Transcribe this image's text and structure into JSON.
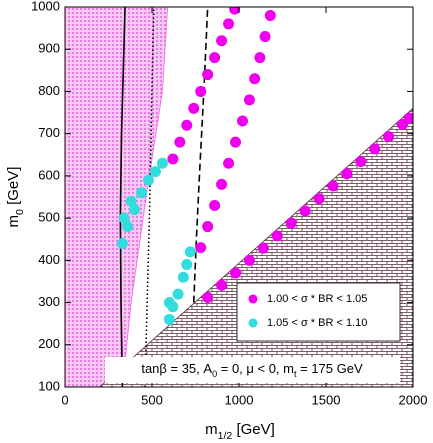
{
  "chart_data": {
    "type": "scatter",
    "xlabel": [
      "m",
      "1/2",
      " [GeV]"
    ],
    "ylabel": [
      "m",
      "0",
      " [GeV]"
    ],
    "annotation": [
      "tanβ = 35, A",
      "0",
      " = 0, μ < 0, m",
      "t",
      " = 175 GeV"
    ],
    "xlim": [
      0,
      2000
    ],
    "ylim": [
      100,
      1000
    ],
    "xticks": [
      0,
      500,
      1000,
      1500,
      2000
    ],
    "yticks": [
      100,
      200,
      300,
      400,
      500,
      600,
      700,
      800,
      900,
      1000
    ],
    "legend": "lower right",
    "regions": [
      {
        "pattern": "dots",
        "color": "#ee66ee",
        "x": [
          0,
          0,
          590,
          560,
          470,
          380,
          330
        ],
        "y": [
          100,
          1000,
          1000,
          800,
          560,
          300,
          100
        ]
      },
      {
        "pattern": "brick",
        "color": "#5a2a3a",
        "x": [
          200,
          2000,
          2000
        ],
        "y": [
          100,
          100,
          760
        ]
      }
    ],
    "curves": [
      {
        "style": "solid",
        "x": [
          330,
          322,
          318,
          325,
          335,
          345
        ],
        "y": [
          100,
          300,
          500,
          700,
          850,
          1000
        ]
      },
      {
        "style": "dotted",
        "x": [
          460,
          472,
          485,
          497,
          510
        ],
        "y": [
          100,
          300,
          500,
          750,
          1000
        ]
      },
      {
        "style": "dashed",
        "x": [
          740,
          755,
          775,
          798,
          820
        ],
        "y": [
          300,
          450,
          620,
          800,
          1000
        ]
      }
    ],
    "series": [
      {
        "name": "1.00 < σ * BR < 1.05",
        "color": "#ee00ee",
        "x": [
          620,
          660,
          700,
          740,
          780,
          820,
          860,
          900,
          940,
          975,
          780,
          820,
          860,
          900,
          940,
          980,
          1020,
          1060,
          1090,
          1120,
          1150,
          1180,
          820,
          900,
          980,
          1060,
          1140,
          1220,
          1300,
          1380,
          1460,
          1540,
          1620,
          1700,
          1780,
          1860,
          1940,
          1980
        ],
        "y": [
          640,
          680,
          720,
          760,
          800,
          840,
          880,
          920,
          960,
          995,
          430,
          480,
          530,
          580,
          630,
          680,
          730,
          780,
          830,
          880,
          930,
          980,
          312,
          341,
          370,
          400,
          429,
          458,
          488,
          517,
          546,
          576,
          605,
          634,
          664,
          693,
          722,
          737
        ]
      },
      {
        "name": "1.05 < σ * BR < 1.10",
        "color": "#33dddd",
        "x": [
          330,
          340,
          360,
          380,
          400,
          440,
          480,
          520,
          560,
          600,
          600,
          620,
          650,
          680,
          700,
          720
        ],
        "y": [
          440,
          500,
          480,
          540,
          520,
          560,
          590,
          610,
          630,
          260,
          300,
          290,
          320,
          360,
          390,
          420
        ]
      }
    ]
  }
}
